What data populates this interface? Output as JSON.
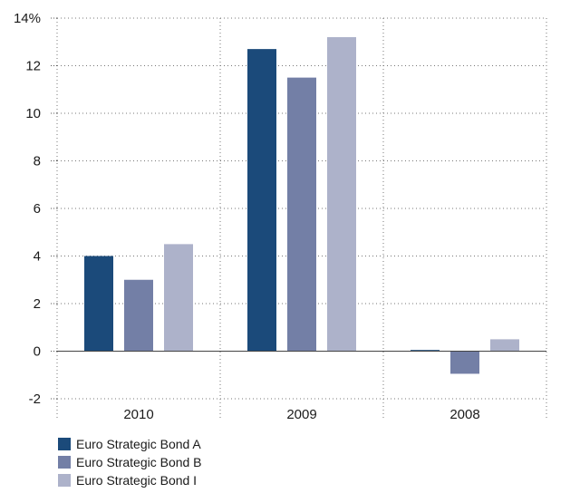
{
  "chart_data": {
    "type": "bar",
    "categories": [
      "2010",
      "2009",
      "2008"
    ],
    "series": [
      {
        "name": "Euro Strategic Bond A",
        "color": "#1b4a7a",
        "values": [
          4.0,
          12.7,
          0.05
        ]
      },
      {
        "name": "Euro Strategic Bond B",
        "color": "#737fa6",
        "values": [
          3.0,
          11.5,
          -0.95
        ]
      },
      {
        "name": "Euro Strategic Bond I",
        "color": "#adb2ca",
        "values": [
          4.5,
          13.2,
          0.5
        ]
      }
    ],
    "yticks": [
      {
        "value": -2,
        "label": "-2"
      },
      {
        "value": 0,
        "label": "0"
      },
      {
        "value": 2,
        "label": "2"
      },
      {
        "value": 4,
        "label": "4"
      },
      {
        "value": 6,
        "label": "6"
      },
      {
        "value": 8,
        "label": "8"
      },
      {
        "value": 10,
        "label": "10"
      },
      {
        "value": 12,
        "label": "12"
      },
      {
        "value": 14,
        "label": "14%"
      }
    ],
    "ylim": [
      -2,
      14
    ],
    "grid": true,
    "legend_position": "bottom-left",
    "title": "",
    "xlabel": "",
    "ylabel": ""
  }
}
